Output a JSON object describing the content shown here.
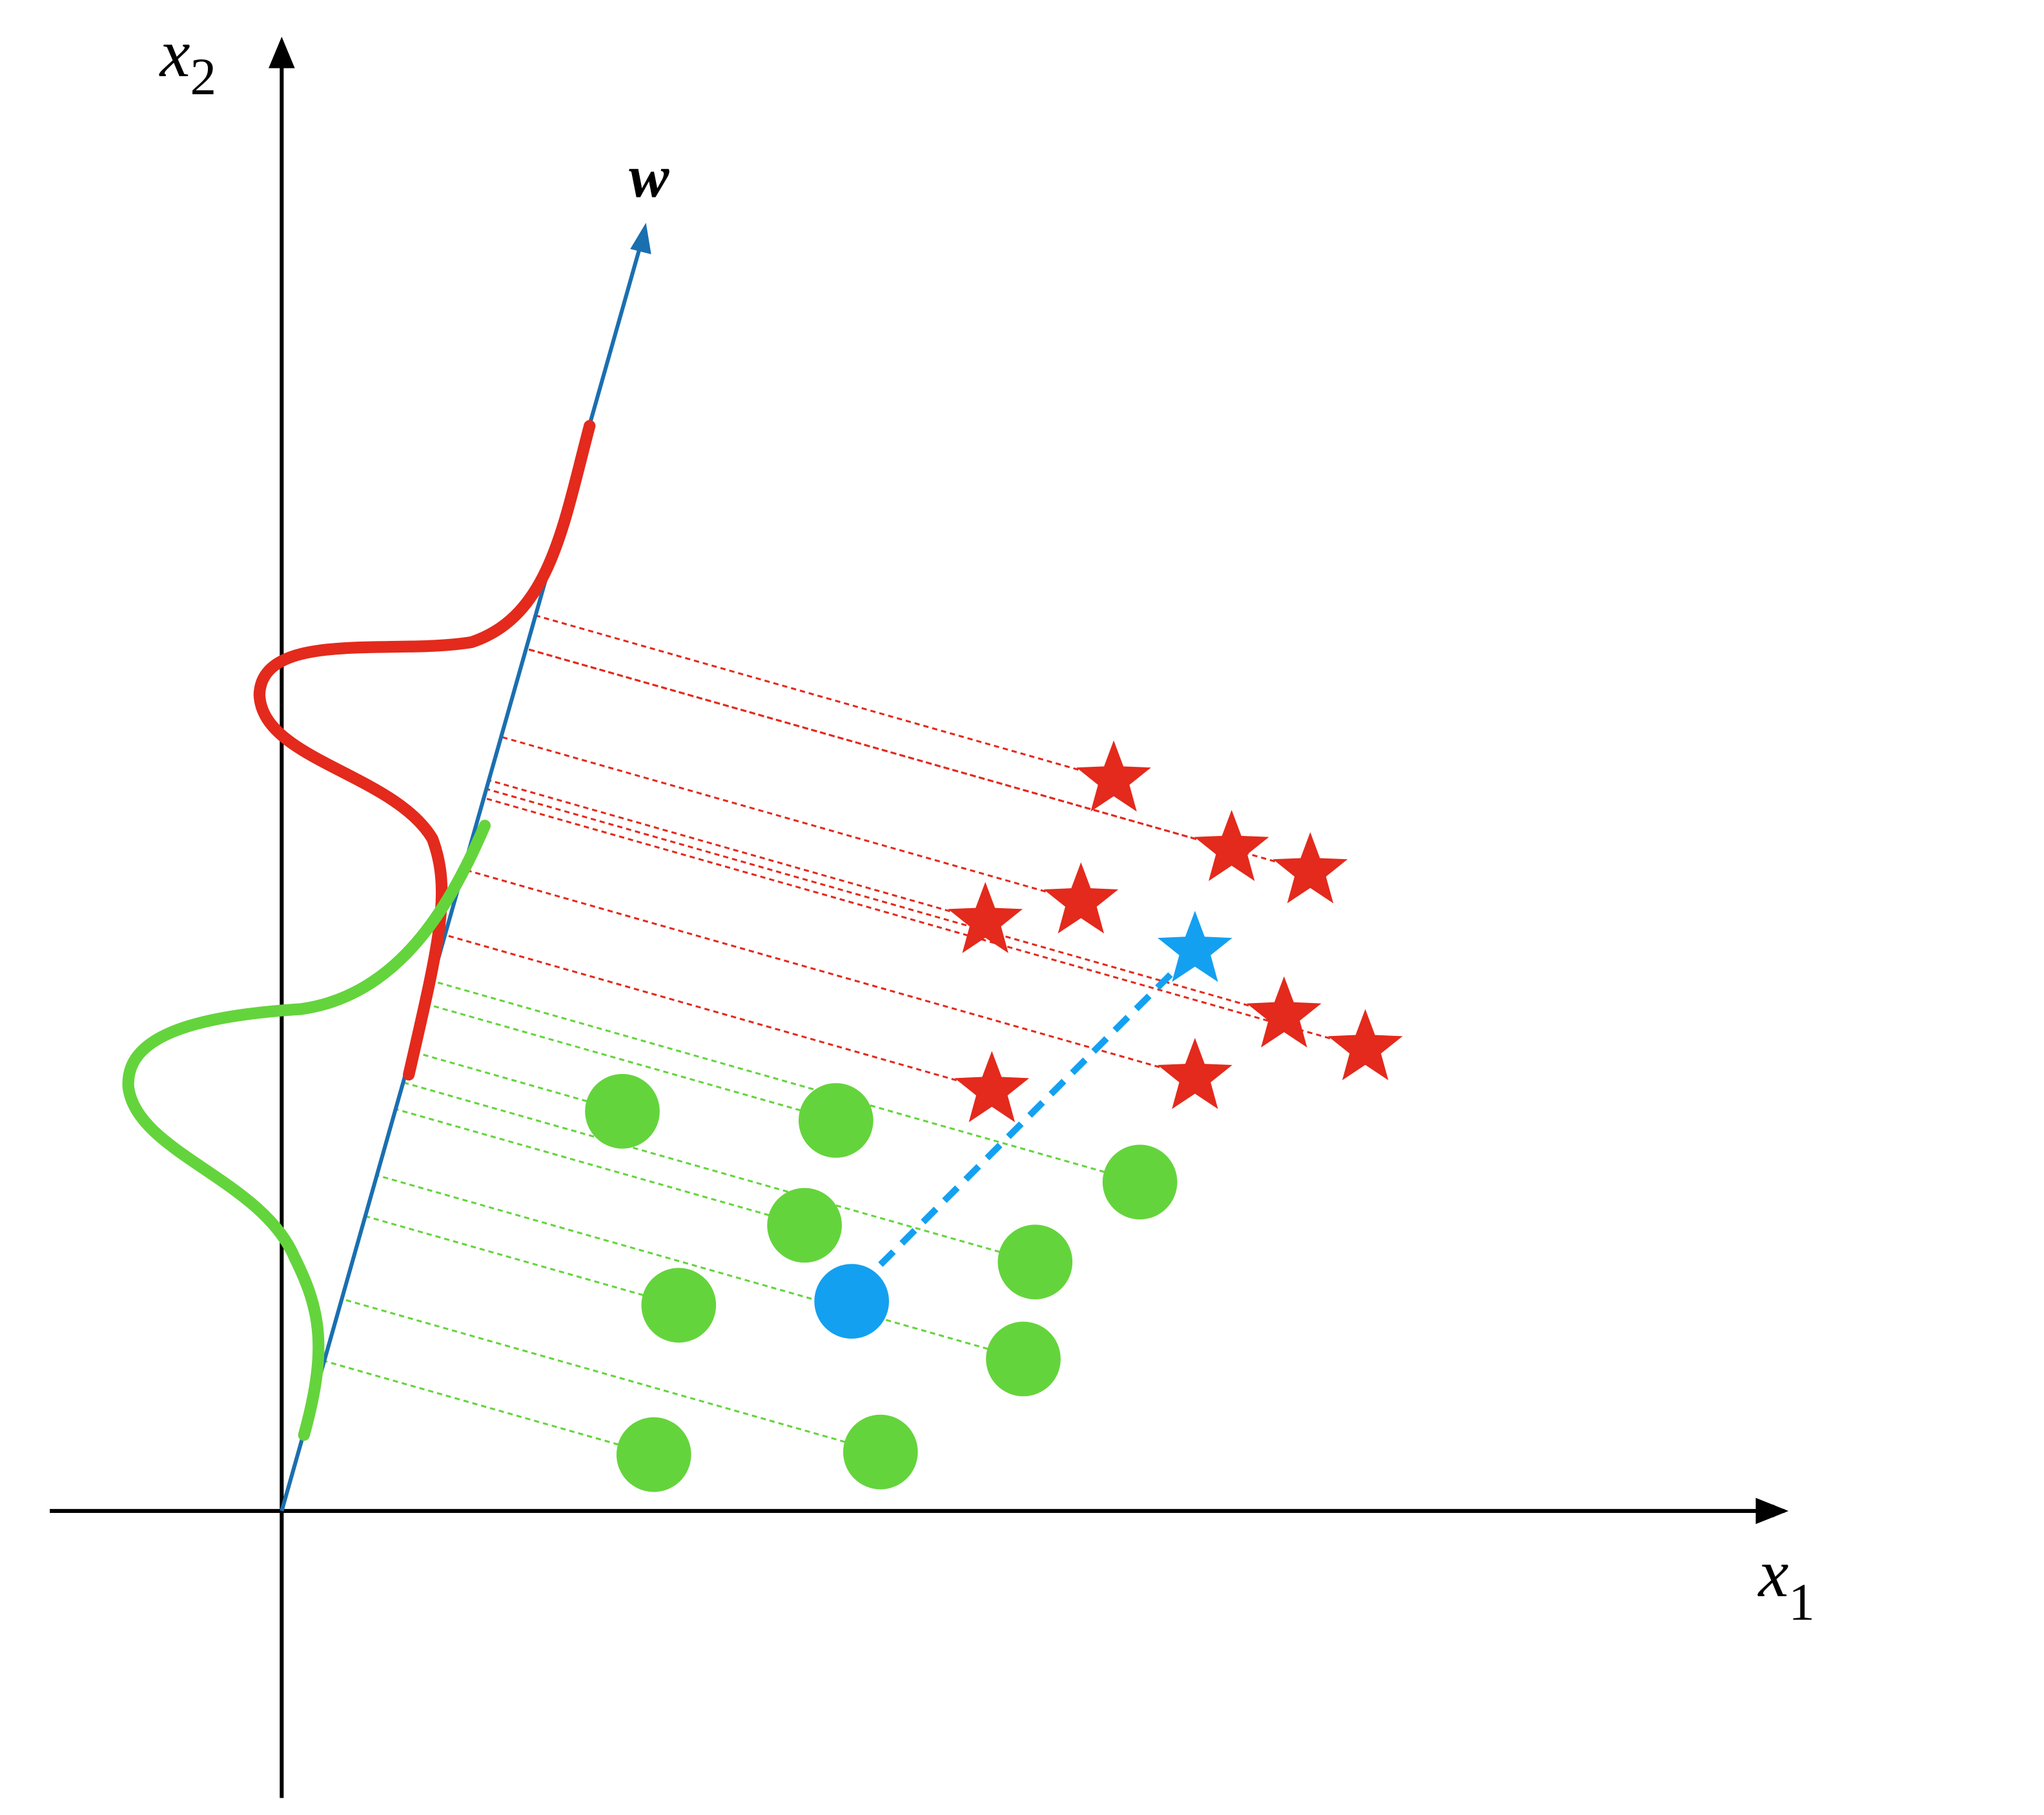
{
  "axes": {
    "x_label": {
      "base": "x",
      "subscript": "1"
    },
    "y_label": {
      "base": "x",
      "subscript": "2"
    }
  },
  "projection": {
    "label": "w"
  }
}
